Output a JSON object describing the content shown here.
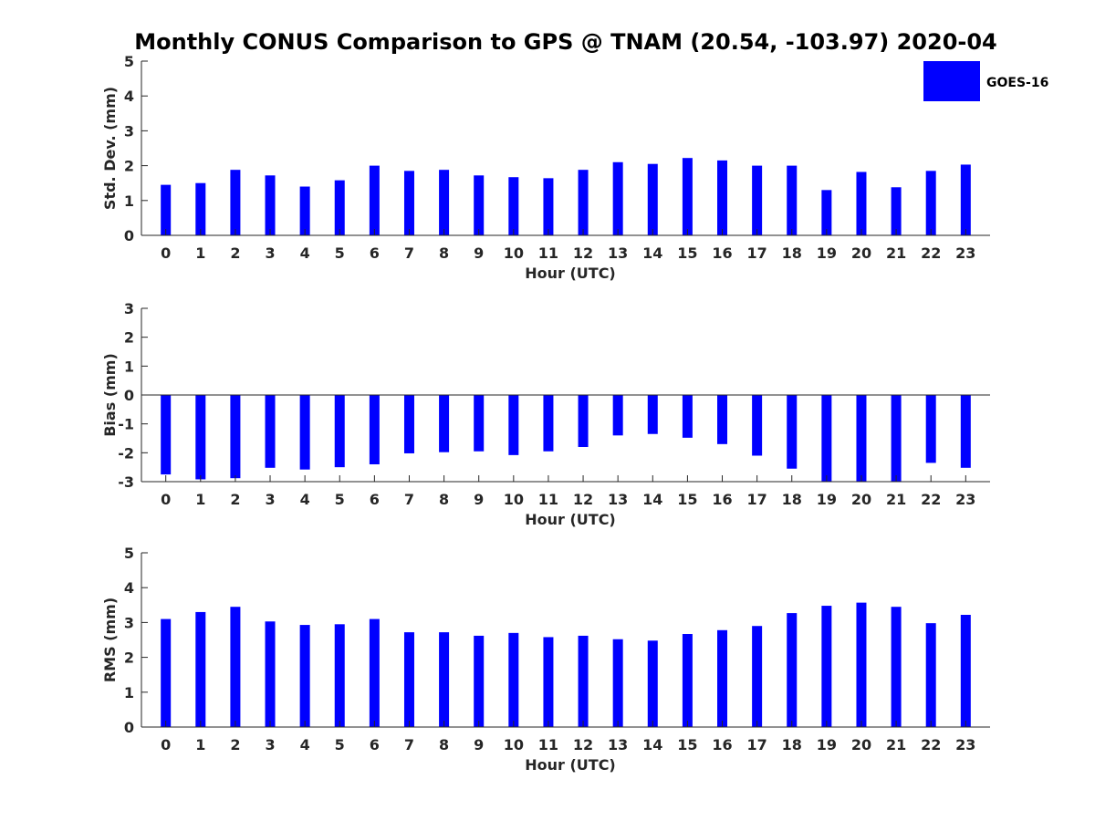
{
  "chart_title": "Monthly CONUS Comparison to GPS @ TNAM (20.54, -103.97) 2020-04",
  "legend": {
    "label": "GOES-16",
    "placement": "top-right"
  },
  "bar_color": "#0000ff",
  "chart_data": [
    {
      "type": "bar",
      "title": "",
      "xlabel": "Hour (UTC)",
      "ylabel": "Std. Dev. (mm)",
      "ylim": [
        0,
        5
      ],
      "yticks": [
        0,
        1,
        2,
        3,
        4,
        5
      ],
      "categories": [
        "0",
        "1",
        "2",
        "3",
        "4",
        "5",
        "6",
        "7",
        "8",
        "9",
        "10",
        "11",
        "12",
        "13",
        "14",
        "15",
        "16",
        "17",
        "18",
        "19",
        "20",
        "21",
        "22",
        "23"
      ],
      "series": [
        {
          "name": "GOES-16",
          "values": [
            1.45,
            1.5,
            1.88,
            1.72,
            1.4,
            1.58,
            2.0,
            1.85,
            1.88,
            1.72,
            1.67,
            1.64,
            1.88,
            2.1,
            2.05,
            2.22,
            2.15,
            2.0,
            2.0,
            1.3,
            1.82,
            1.38,
            1.85,
            2.03
          ]
        }
      ]
    },
    {
      "type": "bar",
      "title": "",
      "xlabel": "Hour (UTC)",
      "ylabel": "Bias (mm)",
      "ylim": [
        -3,
        3
      ],
      "yticks": [
        -3,
        -2,
        -1,
        0,
        1,
        2,
        3
      ],
      "categories": [
        "0",
        "1",
        "2",
        "3",
        "4",
        "5",
        "6",
        "7",
        "8",
        "9",
        "10",
        "11",
        "12",
        "13",
        "14",
        "15",
        "16",
        "17",
        "18",
        "19",
        "20",
        "21",
        "22",
        "23"
      ],
      "series": [
        {
          "name": "GOES-16",
          "values": [
            -2.75,
            -2.92,
            -2.88,
            -2.52,
            -2.58,
            -2.5,
            -2.4,
            -2.02,
            -1.98,
            -1.95,
            -2.08,
            -1.95,
            -1.8,
            -1.4,
            -1.35,
            -1.48,
            -1.7,
            -2.1,
            -2.55,
            -3.05,
            -3.05,
            -3.0,
            -2.35,
            -2.52
          ]
        }
      ]
    },
    {
      "type": "bar",
      "title": "",
      "xlabel": "Hour (UTC)",
      "ylabel": "RMS (mm)",
      "ylim": [
        0,
        5
      ],
      "yticks": [
        0,
        1,
        2,
        3,
        4,
        5
      ],
      "categories": [
        "0",
        "1",
        "2",
        "3",
        "4",
        "5",
        "6",
        "7",
        "8",
        "9",
        "10",
        "11",
        "12",
        "13",
        "14",
        "15",
        "16",
        "17",
        "18",
        "19",
        "20",
        "21",
        "22",
        "23"
      ],
      "series": [
        {
          "name": "GOES-16",
          "values": [
            3.1,
            3.3,
            3.45,
            3.03,
            2.93,
            2.95,
            3.1,
            2.72,
            2.72,
            2.62,
            2.7,
            2.58,
            2.62,
            2.52,
            2.48,
            2.67,
            2.78,
            2.9,
            3.27,
            3.48,
            3.57,
            3.45,
            2.98,
            3.22
          ]
        }
      ]
    }
  ]
}
